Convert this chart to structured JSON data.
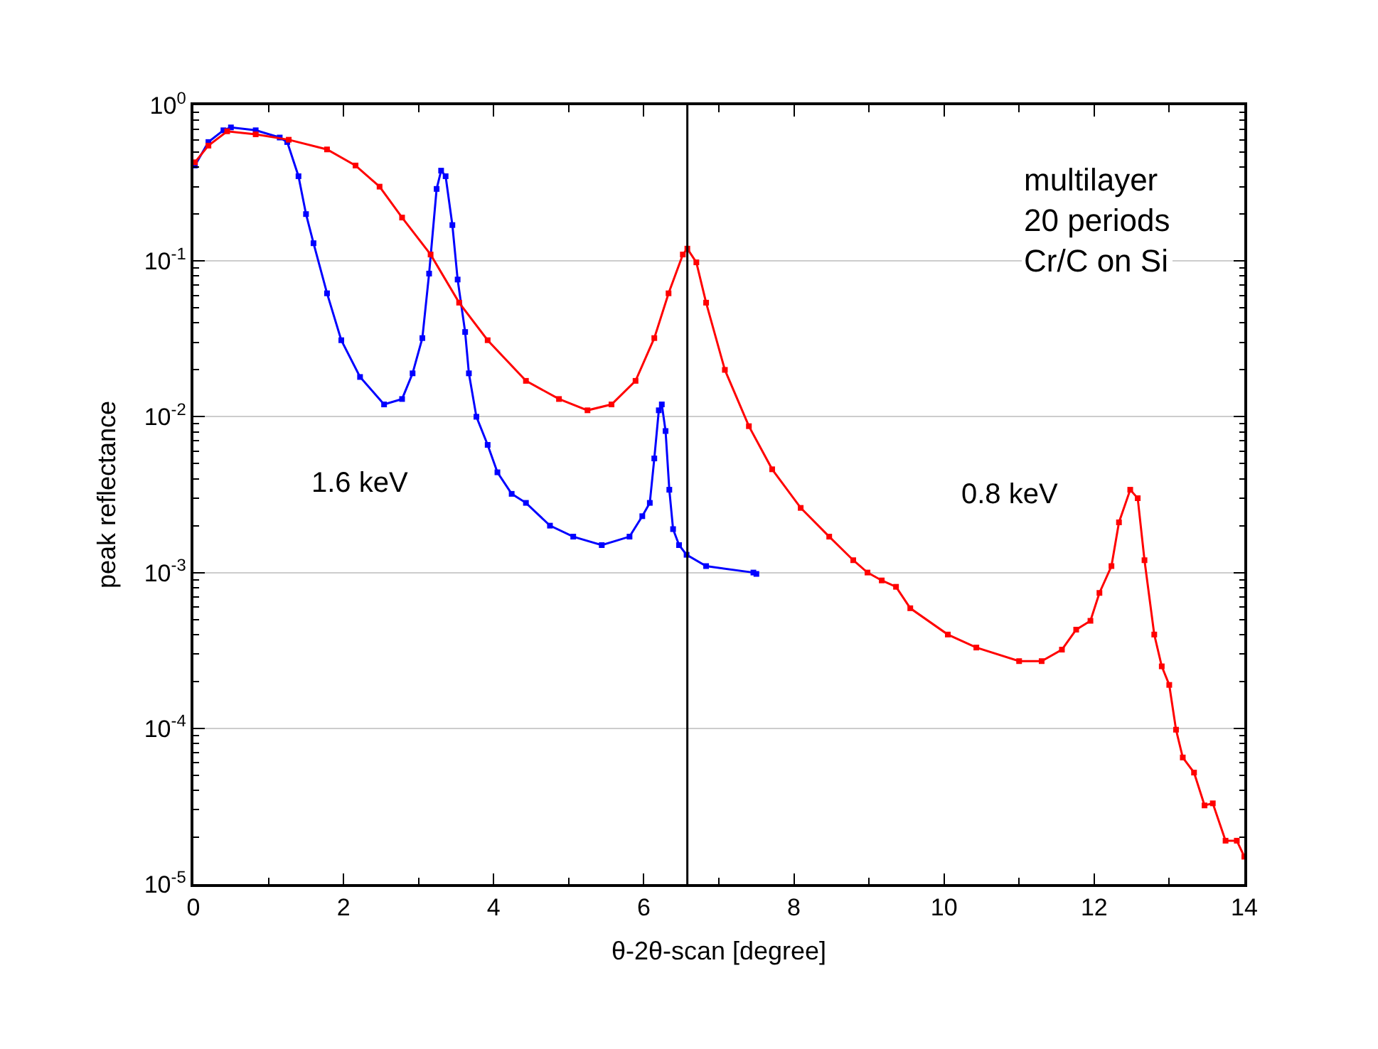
{
  "chart_data": {
    "type": "line",
    "xlabel": "θ-2θ-scan [degree]",
    "ylabel": "peak reflectance",
    "log": "y",
    "grid": "y",
    "marker": "square",
    "line_style": "solid",
    "xlim": [
      0,
      14
    ],
    "xticks": [
      0,
      2,
      4,
      6,
      8,
      10,
      12,
      14
    ],
    "ylim": [
      1e-05,
      1
    ],
    "yticks": [
      {
        "value": 1e-05,
        "label": "10$^{-5}$"
      },
      {
        "value": 0.0001,
        "label": "10$^{-4}$"
      },
      {
        "value": 0.001,
        "label": "10$^{-3}$"
      },
      {
        "value": 0.01,
        "label": "10$^{-2}$"
      },
      {
        "value": 0.1,
        "label": "10$^{-1}$"
      },
      {
        "value": 1,
        "label": "10$^{0}$"
      }
    ],
    "series": [
      {
        "color": "#0000ff",
        "x": [
          0.02,
          0.2,
          0.4,
          0.5,
          0.83,
          1.15,
          1.25,
          1.4,
          1.5,
          1.6,
          1.78,
          1.97,
          2.22,
          2.54,
          2.78,
          2.92,
          3.05,
          3.14,
          3.24,
          3.3,
          3.36,
          3.45,
          3.52,
          3.62,
          3.67,
          3.77,
          3.92,
          4.05,
          4.24,
          4.43,
          4.75,
          5.06,
          5.44,
          5.81,
          5.98,
          6.08,
          6.14,
          6.2,
          6.24,
          6.29,
          6.34,
          6.39,
          6.47,
          6.57,
          6.83,
          7.46,
          7.5
        ],
        "values": [
          0.41,
          0.58,
          0.69,
          0.72,
          0.69,
          0.62,
          0.58,
          0.35,
          0.2,
          0.13,
          0.062,
          0.031,
          0.018,
          0.012,
          0.013,
          0.019,
          0.032,
          0.083,
          0.29,
          0.38,
          0.35,
          0.17,
          0.076,
          0.035,
          0.019,
          0.01,
          0.0066,
          0.0044,
          0.0032,
          0.0028,
          0.002,
          0.0017,
          0.0015,
          0.0017,
          0.0023,
          0.0028,
          0.0054,
          0.011,
          0.012,
          0.0081,
          0.0034,
          0.0019,
          0.0015,
          0.0013,
          0.0011,
          0.001,
          0.00098
        ]
      },
      {
        "color": "#ff0000",
        "x": [
          0.02,
          0.2,
          0.45,
          0.83,
          1.27,
          1.78,
          2.16,
          2.48,
          2.78,
          3.16,
          3.54,
          3.92,
          4.43,
          4.87,
          5.25,
          5.57,
          5.89,
          6.14,
          6.33,
          6.52,
          6.58,
          6.7,
          6.83,
          7.08,
          7.4,
          7.71,
          8.09,
          8.47,
          8.79,
          8.98,
          9.17,
          9.36,
          9.55,
          10.05,
          10.43,
          11.0,
          11.3,
          11.57,
          11.76,
          11.95,
          12.07,
          12.23,
          12.33,
          12.48,
          12.58,
          12.67,
          12.8,
          12.9,
          13.0,
          13.09,
          13.18,
          13.33,
          13.47,
          13.58,
          13.75,
          13.9,
          14.0
        ],
        "values": [
          0.43,
          0.55,
          0.68,
          0.65,
          0.6,
          0.52,
          0.41,
          0.3,
          0.19,
          0.11,
          0.054,
          0.031,
          0.017,
          0.013,
          0.011,
          0.012,
          0.017,
          0.032,
          0.062,
          0.11,
          0.12,
          0.098,
          0.054,
          0.02,
          0.0087,
          0.0046,
          0.0026,
          0.0017,
          0.0012,
          0.001,
          0.00089,
          0.00081,
          0.00059,
          0.0004,
          0.00033,
          0.00027,
          0.00027,
          0.00032,
          0.00043,
          0.00049,
          0.00074,
          0.0011,
          0.0021,
          0.0034,
          0.003,
          0.0012,
          0.0004,
          0.00025,
          0.00019,
          9.8e-05,
          6.5e-05,
          5.2e-05,
          3.2e-05,
          3.3e-05,
          1.9e-05,
          1.9e-05,
          1.5e-05
        ]
      }
    ],
    "ref_lines": [
      {
        "axis": "x",
        "value": 6.58,
        "color": "#000000"
      }
    ],
    "annotations": [
      "1.6 keV",
      "0.8 keV",
      "multilayer\n20 periods\nCr/C on Si"
    ]
  }
}
